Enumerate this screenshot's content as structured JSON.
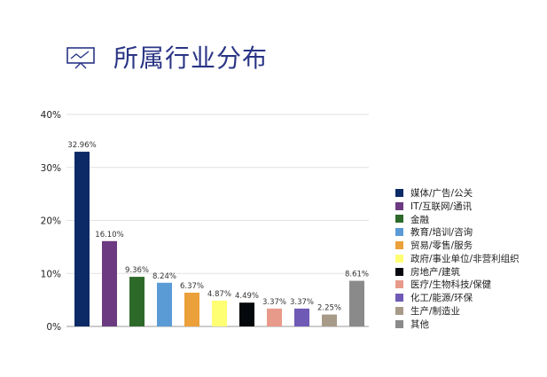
{
  "header": {
    "title": "所属行业分布",
    "icon": "presentation-chart-icon"
  },
  "chart_data": {
    "type": "bar",
    "title": "所属行业分布",
    "xlabel": "",
    "ylabel": "",
    "ylim": [
      0,
      40
    ],
    "yticks": [
      "0%",
      "10%",
      "20%",
      "30%",
      "40%"
    ],
    "ytick_values": [
      0,
      10,
      20,
      30,
      40
    ],
    "grid": true,
    "legend_position": "right",
    "categories": [
      "媒体/广告/公关",
      "IT/互联网/通讯",
      "金融",
      "教育/培训/咨询",
      "贸易/零售/服务",
      "政府/事业单位/非营利组织",
      "房地产/建筑",
      "医疗/生物科技/保健",
      "化工/能源/环保",
      "生产/制造业",
      "其他"
    ],
    "values": [
      32.96,
      16.1,
      9.36,
      8.24,
      6.37,
      4.87,
      4.49,
      3.37,
      3.37,
      2.25,
      8.61
    ],
    "labels": [
      "32.96%",
      "16.10%",
      "9.36%",
      "8.24%",
      "6.37%",
      "4.87%",
      "4.49%",
      "3.37%",
      "3.37%",
      "2.25%",
      "8.61%"
    ],
    "colors": [
      "#0b2a66",
      "#6b3a80",
      "#2d6a2a",
      "#5b9bd5",
      "#eba03a",
      "#ffff73",
      "#05080c",
      "#e89a8a",
      "#6f5ab5",
      "#a89a88",
      "#8a8a8a"
    ]
  }
}
